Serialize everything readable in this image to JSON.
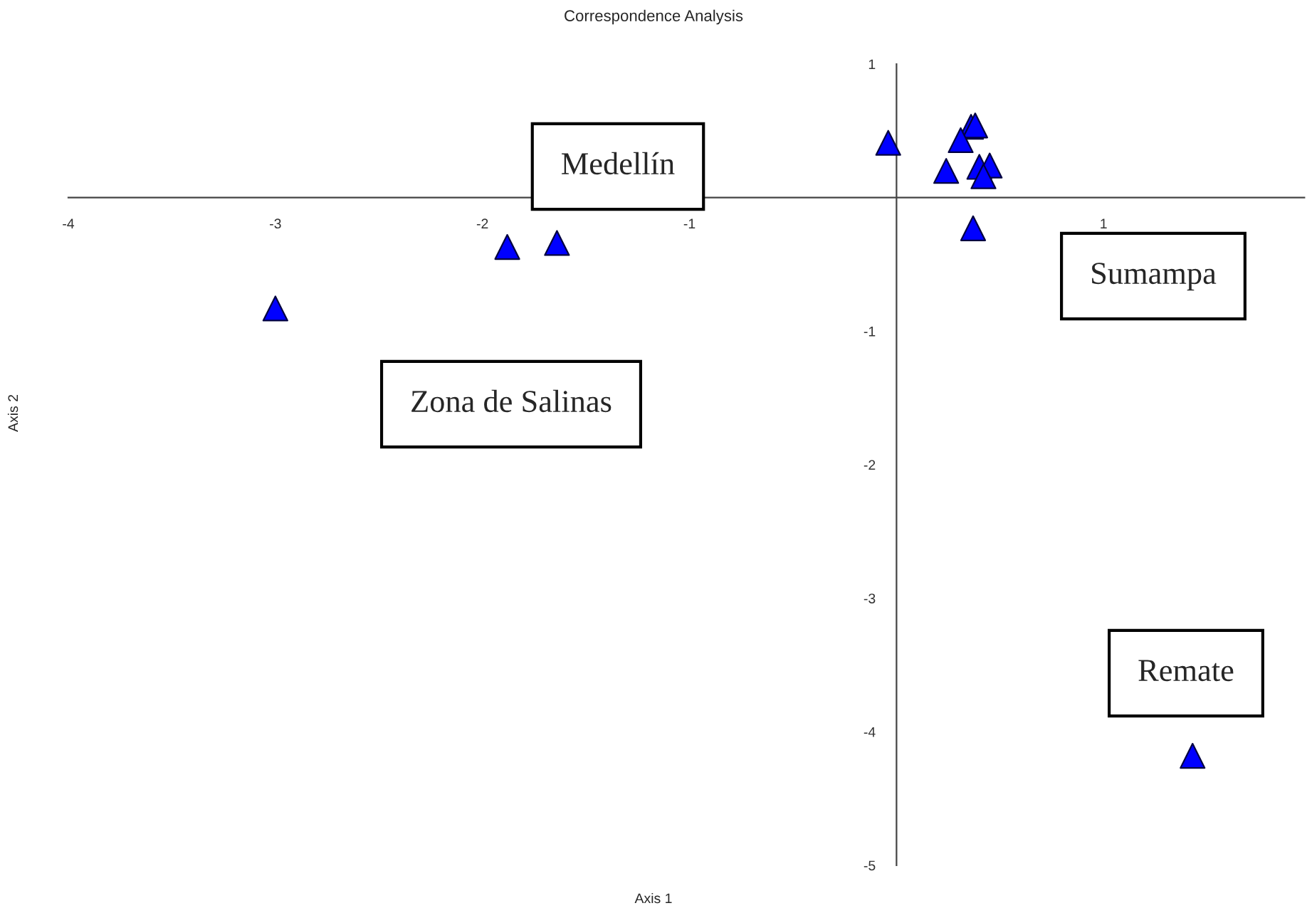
{
  "chart_data": {
    "type": "scatter",
    "title": "Correspondence Analysis",
    "xlabel": "Axis 1",
    "ylabel": "Axis 2",
    "x": [
      -3.0,
      -1.88,
      -1.64,
      -0.04,
      0.36,
      0.38,
      0.31,
      0.24,
      0.4,
      0.45,
      0.42,
      0.37,
      1.43
    ],
    "values": [
      -0.83,
      -0.37,
      -0.34,
      0.41,
      0.53,
      0.54,
      0.43,
      0.2,
      0.23,
      0.24,
      0.16,
      -0.23,
      -4.18
    ],
    "color": "#0000ff",
    "marker": "triangle",
    "grid": false,
    "xlim": [
      -4,
      1.97
    ],
    "ylim": [
      -5,
      1
    ],
    "xticks": [
      -4,
      -3,
      -2,
      -1,
      1
    ],
    "yticks": [
      1,
      -1,
      -2,
      -3,
      -4,
      -5
    ],
    "annotations": [
      "Medellín",
      "Sumampa",
      "Zona de Salinas",
      "Remate"
    ]
  }
}
